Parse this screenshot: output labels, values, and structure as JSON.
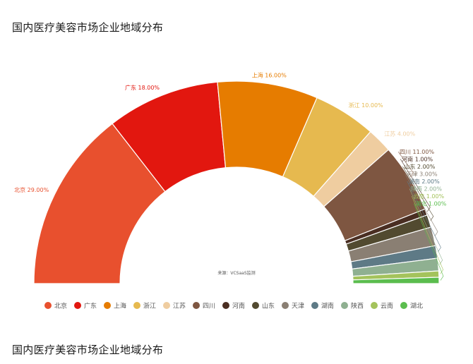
{
  "page": {
    "title_top": "国内医疗美容市场企业地域分布",
    "title_bottom": "国内医疗美容市场企业地域分布"
  },
  "chart_data": {
    "type": "pie",
    "variant": "half-donut",
    "title": "国内医疗美容市场企业地域分布",
    "source": "来源：VCSaaS监测",
    "legend_position": "bottom",
    "slices": [
      {
        "name": "北京",
        "value": 29.0,
        "label": "北京 29.00%",
        "color": "#e8502e"
      },
      {
        "name": "广东",
        "value": 18.0,
        "label": "广东 18.00%",
        "color": "#e2170f"
      },
      {
        "name": "上海",
        "value": 16.0,
        "label": "上海 16.00%",
        "color": "#e67c00"
      },
      {
        "name": "浙江",
        "value": 10.0,
        "label": "浙江 10.00%",
        "color": "#e6b94f"
      },
      {
        "name": "江苏",
        "value": 4.0,
        "label": "江苏 4.00%",
        "color": "#efcda0"
      },
      {
        "name": "四川",
        "value": 11.0,
        "label": "四川 11.00%",
        "color": "#7e5641"
      },
      {
        "name": "河南",
        "value": 1.0,
        "label": "河南 1.00%",
        "color": "#4a2e22"
      },
      {
        "name": "山东",
        "value": 2.0,
        "label": "山东 2.00%",
        "color": "#524a30"
      },
      {
        "name": "天津",
        "value": 3.0,
        "label": "天津 3.00%",
        "color": "#8a7f73"
      },
      {
        "name": "湖南",
        "value": 2.0,
        "label": "湖南 2.00%",
        "color": "#5e7a86"
      },
      {
        "name": "陕西",
        "value": 2.0,
        "label": "陕西 2.00%",
        "color": "#8fb091"
      },
      {
        "name": "云南",
        "value": 1.0,
        "label": "云南 1.00%",
        "color": "#a4c35c"
      },
      {
        "name": "湖北",
        "value": 1.0,
        "label": "湖北 1.00%",
        "color": "#5bbd4e"
      }
    ]
  }
}
